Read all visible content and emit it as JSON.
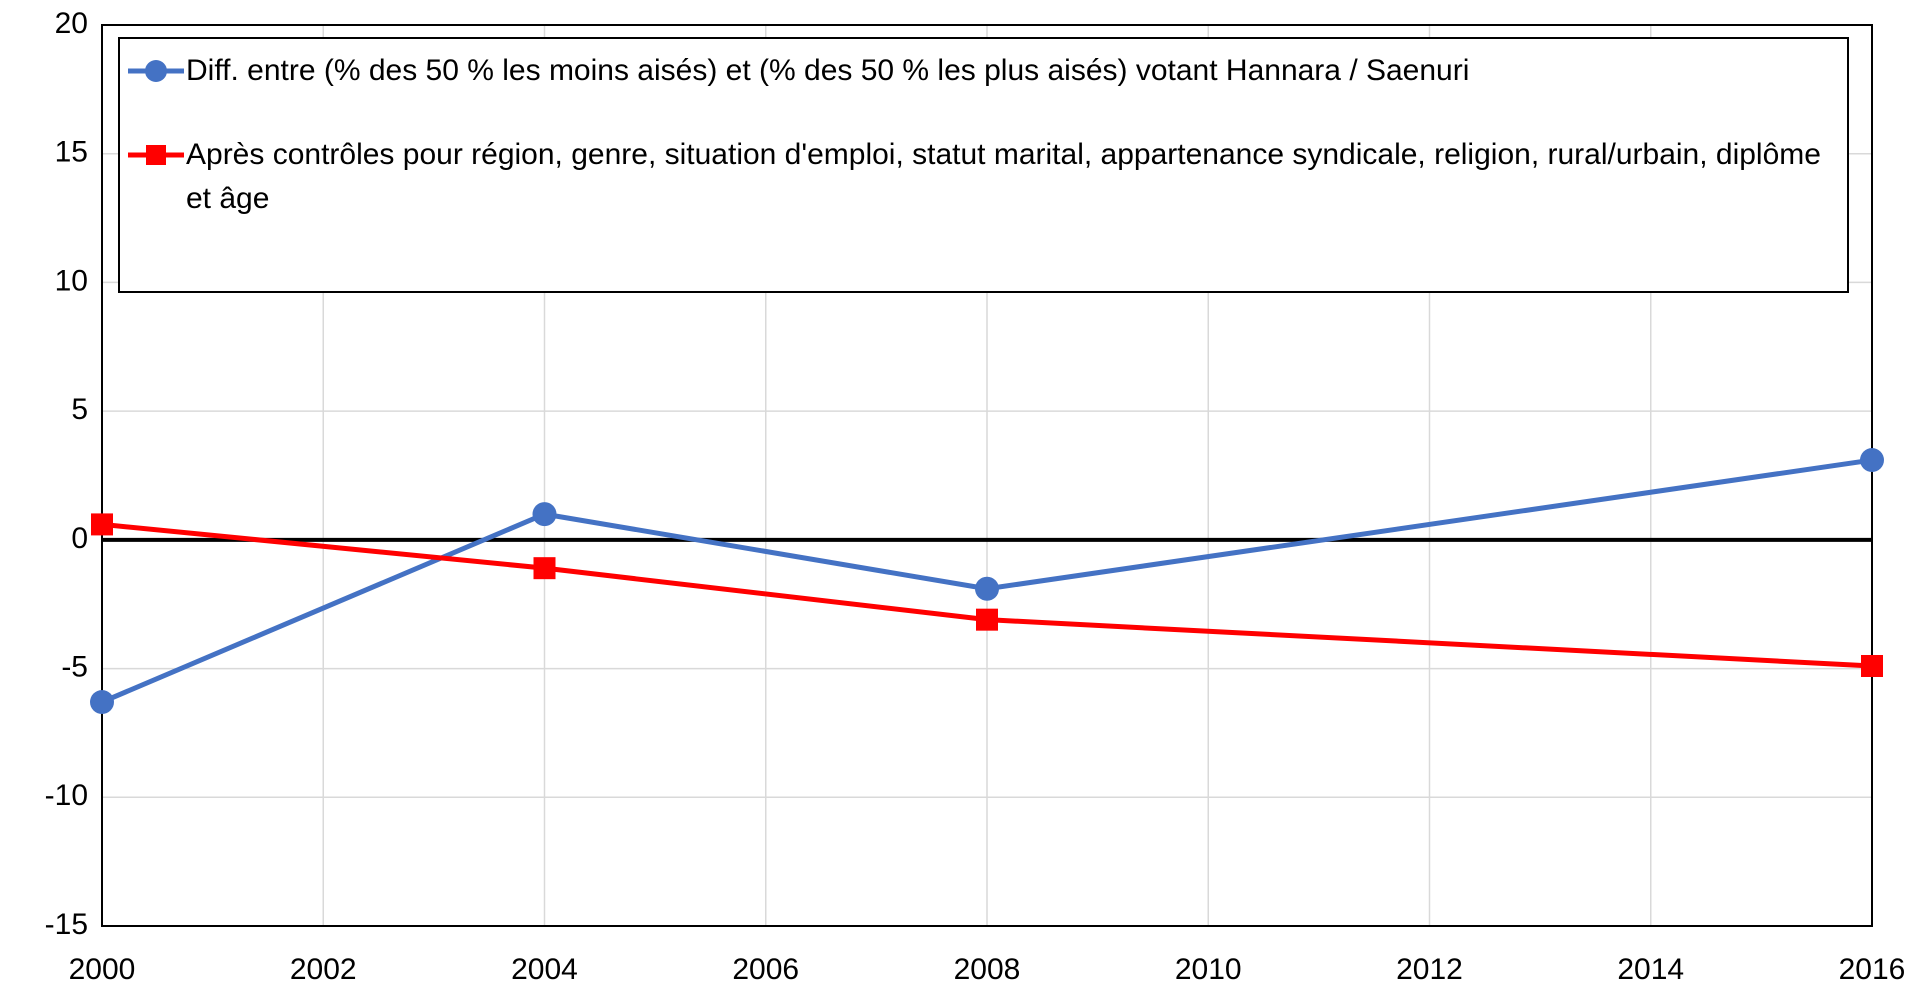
{
  "chart_data": {
    "type": "line",
    "x": [
      2000,
      2004,
      2008,
      2016
    ],
    "series": [
      {
        "name": "Diff. entre (% des 50 % les moins aisés) et (% des 50 % les plus aisés) votant Hannara / Saenuri",
        "color": "#4472c4",
        "marker": "circle",
        "values": [
          -6.3,
          1.0,
          -1.9,
          3.1
        ]
      },
      {
        "name": "Après contrôles pour région, genre, situation d'emploi, statut marital, appartenance syndicale, religion, rural/urbain, diplôme et âge",
        "color": "#ff0000",
        "marker": "square",
        "values": [
          0.6,
          -1.1,
          -3.1,
          -4.9
        ]
      }
    ],
    "xlim": [
      2000,
      2016
    ],
    "xticks": [
      2000,
      2002,
      2004,
      2006,
      2008,
      2010,
      2012,
      2014,
      2016
    ],
    "ylim": [
      -15,
      20
    ],
    "yticks": [
      -15,
      -10,
      -5,
      0,
      5,
      10,
      15,
      20
    ],
    "grid": true,
    "legend": "top"
  }
}
